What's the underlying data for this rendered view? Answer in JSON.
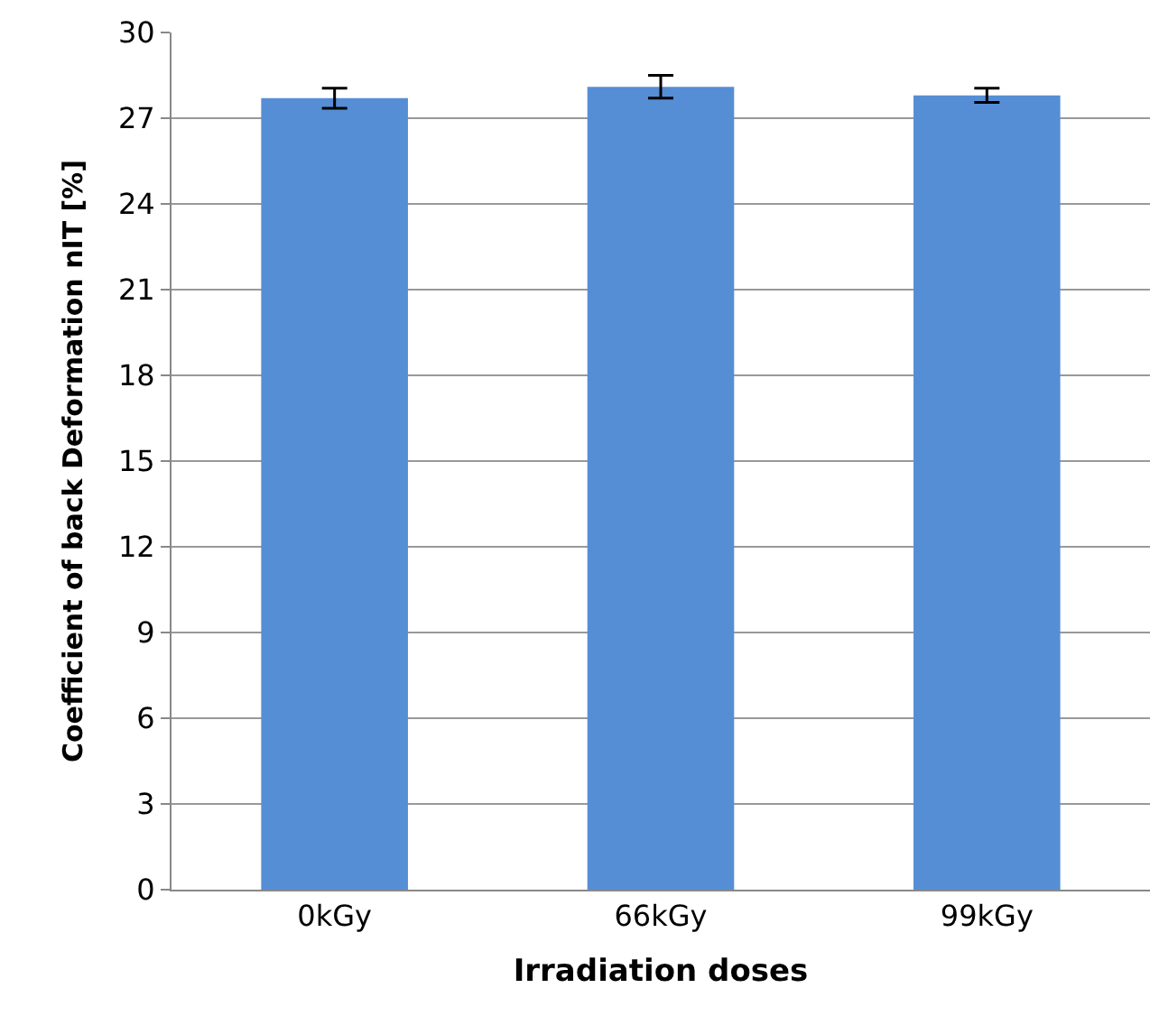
{
  "chart_data": {
    "type": "bar",
    "xlabel": "Irradiation doses",
    "ylabel": "Coefficient of back Deformation nIT [%]",
    "categories": [
      "0kGy",
      "66kGy",
      "99kGy"
    ],
    "values": [
      27.7,
      28.1,
      27.8
    ],
    "errors": [
      0.35,
      0.4,
      0.25
    ],
    "color": "#558ed5",
    "ylim": [
      0,
      30
    ],
    "yticks": [
      0,
      3,
      6,
      9,
      12,
      15,
      18,
      21,
      24,
      27,
      30
    ],
    "grid": "y",
    "legend": false
  }
}
